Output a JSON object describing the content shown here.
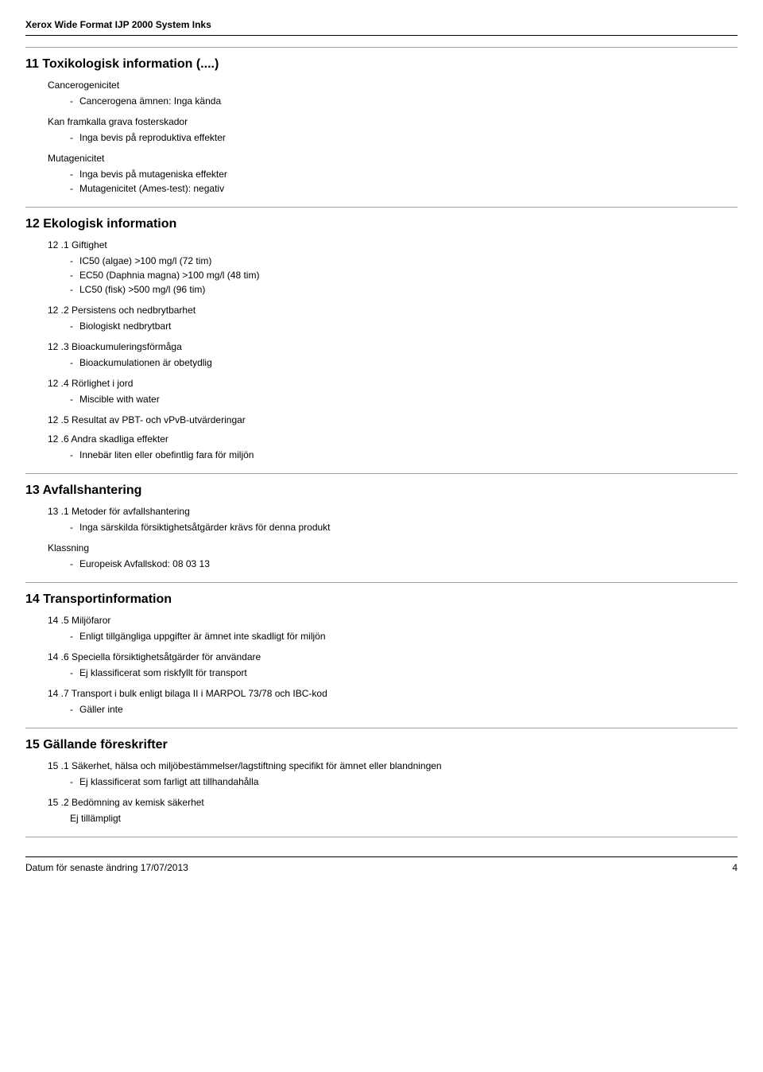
{
  "header": {
    "title": "Xerox Wide Format IJP 2000 System Inks"
  },
  "s11": {
    "heading": "11 Toxikologisk information (....)",
    "cancer": {
      "label": "Cancerogenicitet",
      "item": "Cancerogena ämnen: Inga kända"
    },
    "foster": {
      "label": "Kan framkalla grava fosterskador",
      "item": "Inga bevis på reproduktiva effekter"
    },
    "mutagen": {
      "label": "Mutagenicitet",
      "item1": "Inga bevis på mutageniska effekter",
      "item2": "Mutagenicitet (Ames-test): negativ"
    }
  },
  "s12": {
    "heading": "12 Ekologisk information",
    "p1": {
      "label": "12 .1 Giftighet",
      "i1": "IC50 (algae) >100 mg/l (72 tim)",
      "i2": "EC50 (Daphnia magna) >100 mg/l (48 tim)",
      "i3": "LC50 (fisk) >500 mg/l (96 tim)"
    },
    "p2": {
      "label": "12 .2 Persistens och nedbrytbarhet",
      "i1": "Biologiskt nedbrytbart"
    },
    "p3": {
      "label": "12 .3 Bioackumuleringsförmåga",
      "i1": "Bioackumulationen är obetydlig"
    },
    "p4": {
      "label": "12 .4 Rörlighet i jord",
      "i1": "Miscible with water"
    },
    "p5": {
      "label": "12 .5 Resultat av PBT- och vPvB-utvärderingar"
    },
    "p6": {
      "label": "12 .6 Andra skadliga effekter",
      "i1": "Innebär liten eller obefintlig fara för miljön"
    }
  },
  "s13": {
    "heading": "13 Avfallshantering",
    "p1": {
      "label": "13 .1 Metoder för avfallshantering",
      "i1": "Inga särskilda försiktighetsåtgärder krävs för denna produkt"
    },
    "klass": {
      "label": "Klassning",
      "i1": "Europeisk Avfallskod: 08 03 13"
    }
  },
  "s14": {
    "heading": "14 Transportinformation",
    "p5": {
      "label": "14 .5 Miljöfaror",
      "i1": "Enligt tillgängliga uppgifter är ämnet inte skadligt för miljön"
    },
    "p6": {
      "label": "14 .6 Speciella försiktighetsåtgärder för användare",
      "i1": "Ej klassificerat som riskfyllt för transport"
    },
    "p7": {
      "label": "14 .7 Transport i bulk enligt bilaga II i MARPOL 73/78 och IBC-kod",
      "i1": "Gäller inte"
    }
  },
  "s15": {
    "heading": "15 Gällande föreskrifter",
    "p1": {
      "label": "15 .1 Säkerhet, hälsa och miljöbestämmelser/lagstiftning specifikt för ämnet eller blandningen",
      "i1": "Ej klassificerat som farligt att tillhandahålla"
    },
    "p2": {
      "label": "15 .2 Bedömning av kemisk säkerhet",
      "i1": "Ej tillämpligt"
    }
  },
  "footer": {
    "date": "Datum för senaste ändring 17/07/2013",
    "page": "4"
  }
}
